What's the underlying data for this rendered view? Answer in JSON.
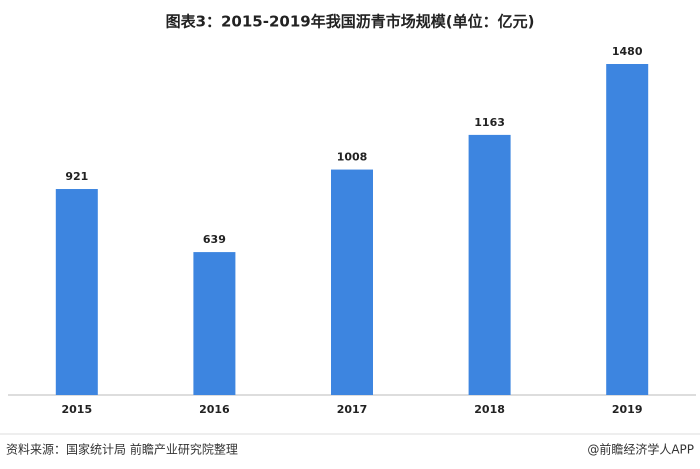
{
  "chart_data": {
    "type": "bar",
    "title": "图表3：2015-2019年我国沥青市场规模(单位：亿元)",
    "categories": [
      "2015",
      "2016",
      "2017",
      "2018",
      "2019"
    ],
    "values": [
      921,
      639,
      1008,
      1163,
      1480
    ],
    "color": "#3d85e0"
  },
  "footer": {
    "source": "资料来源：国家统计局 前瞻产业研究院整理",
    "credit": "@前瞻经济学人APP"
  }
}
